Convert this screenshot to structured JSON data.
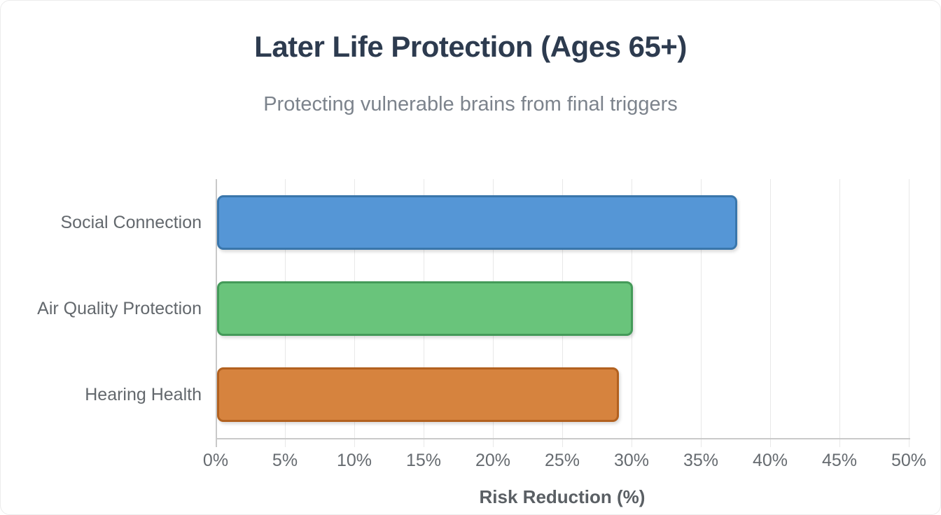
{
  "chart": {
    "title": "Later Life Protection (Ages 65+)",
    "subtitle": "Protecting vulnerable brains from final triggers",
    "xlabel": "Risk Reduction (%)"
  },
  "chart_data": {
    "type": "bar",
    "orientation": "horizontal",
    "title": "Later Life Protection (Ages 65+)",
    "subtitle": "Protecting vulnerable brains from final triggers",
    "xlabel": "Risk Reduction (%)",
    "ylabel": "",
    "categories": [
      "Social Connection",
      "Air Quality Protection",
      "Hearing Health"
    ],
    "values": [
      37.5,
      30,
      29
    ],
    "bar_fill_colors": [
      "#5596d6",
      "#69c47b",
      "#d6833e"
    ],
    "bar_edge_colors": [
      "#3a76ab",
      "#449a59",
      "#b2611f"
    ],
    "xlim": [
      0,
      50
    ],
    "x_tick_step": 5,
    "x_tick_labels": [
      "0%",
      "5%",
      "10%",
      "15%",
      "20%",
      "25%",
      "30%",
      "35%",
      "40%",
      "45%",
      "50%"
    ],
    "grid": "vertical-only",
    "legend": "none",
    "background": "#ffffff"
  },
  "colors": {
    "title_text": "#2d3b4f",
    "subtitle_text": "#7c838c",
    "axis_text": "#666b70",
    "gridline": "#e8e8e8",
    "axis_line": "#c9c9c9"
  }
}
